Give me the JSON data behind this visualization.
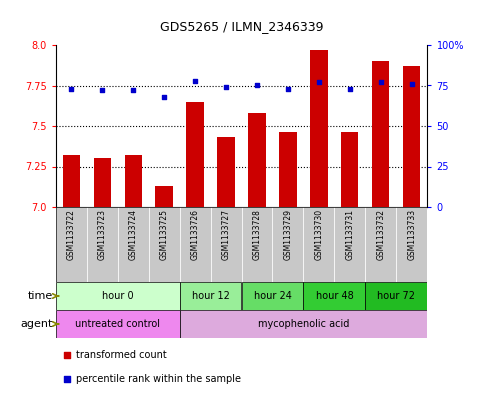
{
  "title": "GDS5265 / ILMN_2346339",
  "samples": [
    "GSM1133722",
    "GSM1133723",
    "GSM1133724",
    "GSM1133725",
    "GSM1133726",
    "GSM1133727",
    "GSM1133728",
    "GSM1133729",
    "GSM1133730",
    "GSM1133731",
    "GSM1133732",
    "GSM1133733"
  ],
  "transformed_count": [
    7.32,
    7.3,
    7.32,
    7.13,
    7.65,
    7.43,
    7.58,
    7.46,
    7.97,
    7.46,
    7.9,
    7.87
  ],
  "percentile_rank": [
    73,
    72,
    72,
    68,
    78,
    74,
    75,
    73,
    77,
    73,
    77,
    76
  ],
  "ylim_left": [
    7.0,
    8.0
  ],
  "ylim_right": [
    0,
    100
  ],
  "yticks_left": [
    7.0,
    7.25,
    7.5,
    7.75,
    8.0
  ],
  "yticks_right": [
    0,
    25,
    50,
    75,
    100
  ],
  "bar_color": "#CC0000",
  "dot_color": "#0000CC",
  "time_groups": [
    {
      "label": "hour 0",
      "start": 0,
      "end": 4,
      "color": "#CCFFCC"
    },
    {
      "label": "hour 12",
      "start": 4,
      "end": 6,
      "color": "#99EE99"
    },
    {
      "label": "hour 24",
      "start": 6,
      "end": 8,
      "color": "#66DD66"
    },
    {
      "label": "hour 48",
      "start": 8,
      "end": 10,
      "color": "#33CC33"
    },
    {
      "label": "hour 72",
      "start": 10,
      "end": 12,
      "color": "#22BB22"
    }
  ],
  "agent_groups": [
    {
      "label": "untreated control",
      "start": 0,
      "end": 4,
      "color": "#EE88EE"
    },
    {
      "label": "mycophenolic acid",
      "start": 4,
      "end": 12,
      "color": "#DDAADD"
    }
  ],
  "time_colors": [
    "#CCFFCC",
    "#99EE99",
    "#66DD66",
    "#33CC33",
    "#22BB22"
  ],
  "agent_colors": [
    "#EE88EE",
    "#DDAADD"
  ],
  "sample_bg": "#C8C8C8",
  "arrow_color": "#888800"
}
